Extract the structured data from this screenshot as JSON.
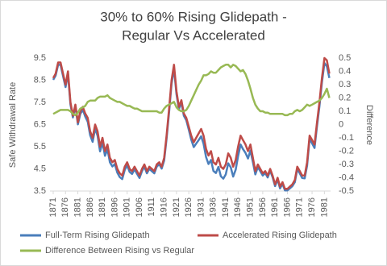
{
  "chart_data": {
    "type": "line",
    "title": [
      "30% to 60% Rising Glidepath -",
      "Regular Vs Accelerated"
    ],
    "y_label": "Safe Withdrawal Rate",
    "y2_label": "Difference",
    "x": [
      1871,
      1872,
      1873,
      1874,
      1875,
      1876,
      1877,
      1878,
      1879,
      1880,
      1881,
      1882,
      1883,
      1884,
      1885,
      1886,
      1887,
      1888,
      1889,
      1890,
      1891,
      1892,
      1893,
      1894,
      1895,
      1896,
      1897,
      1898,
      1899,
      1900,
      1901,
      1902,
      1903,
      1904,
      1905,
      1906,
      1907,
      1908,
      1909,
      1910,
      1911,
      1912,
      1913,
      1914,
      1915,
      1916,
      1917,
      1918,
      1919,
      1920,
      1921,
      1922,
      1923,
      1924,
      1925,
      1926,
      1927,
      1928,
      1929,
      1930,
      1931,
      1932,
      1933,
      1934,
      1935,
      1936,
      1937,
      1938,
      1939,
      1940,
      1941,
      1942,
      1943,
      1944,
      1945,
      1946,
      1947,
      1948,
      1949,
      1950,
      1951,
      1952,
      1953,
      1954,
      1955,
      1956,
      1957,
      1958,
      1959,
      1960,
      1961,
      1962,
      1963,
      1964,
      1965,
      1966,
      1967,
      1968,
      1969,
      1970,
      1971,
      1972,
      1973,
      1974,
      1975,
      1976,
      1977,
      1978,
      1979,
      1980,
      1981,
      1982,
      1983
    ],
    "xlim": [
      1869.7,
      1983.5
    ],
    "xticks": [
      1871,
      1876,
      1881,
      1886,
      1891,
      1896,
      1901,
      1906,
      1911,
      1916,
      1921,
      1926,
      1931,
      1936,
      1941,
      1946,
      1951,
      1956,
      1961,
      1966,
      1971,
      1976,
      1981
    ],
    "ylim": [
      3.5,
      9.5
    ],
    "yticks": [
      3.5,
      4.5,
      5.5,
      6.5,
      7.5,
      8.5,
      9.5
    ],
    "y2lim": [
      -0.5,
      0.5
    ],
    "y2ticks": [
      0.5,
      0.4,
      0.3,
      0.2,
      0.1,
      0,
      -0.1,
      -0.2,
      -0.3,
      -0.4,
      -0.5
    ],
    "grid": false,
    "legend": "bottom",
    "series": [
      {
        "name": "Full-Term Rising Glidepath",
        "color": "#4a7ebb",
        "values": [
          8.52,
          8.71,
          9.2,
          9.19,
          8.69,
          8.19,
          8.79,
          7.4,
          6.82,
          7.33,
          6.51,
          6.98,
          7.17,
          6.86,
          6.63,
          6.02,
          5.72,
          6.32,
          6.0,
          5.29,
          5.69,
          5.09,
          5.38,
          4.8,
          4.61,
          4.72,
          4.33,
          4.13,
          4.04,
          4.45,
          4.66,
          4.36,
          4.27,
          4.48,
          4.28,
          4.09,
          4.4,
          4.6,
          4.3,
          4.5,
          4.4,
          4.3,
          4.6,
          4.71,
          4.51,
          4.88,
          5.86,
          7.05,
          8.34,
          9.03,
          7.87,
          7.19,
          7.5,
          6.9,
          6.69,
          6.26,
          5.82,
          5.48,
          5.64,
          5.8,
          5.97,
          5.63,
          5.03,
          4.72,
          4.9,
          4.41,
          4.31,
          4.59,
          4.17,
          4.06,
          4.25,
          4.75,
          4.57,
          4.15,
          4.46,
          5.08,
          5.6,
          5.39,
          5.22,
          4.97,
          5.33,
          4.8,
          4.25,
          4.58,
          4.4,
          4.2,
          4.31,
          4.11,
          4.42,
          4.12,
          3.72,
          4.02,
          3.62,
          3.82,
          3.53,
          3.53,
          3.62,
          3.72,
          3.9,
          4.49,
          4.3,
          4.09,
          4.07,
          4.65,
          5.86,
          5.65,
          5.44,
          6.43,
          7.32,
          8.4,
          9.27,
          9.13,
          8.6
        ]
      },
      {
        "name": "Accelerated Rising Glidepath",
        "color": "#be4b48",
        "values": [
          8.6,
          8.8,
          9.3,
          9.3,
          8.8,
          8.3,
          8.9,
          7.5,
          6.9,
          7.4,
          6.6,
          7.1,
          7.3,
          7.0,
          6.8,
          6.2,
          5.9,
          6.5,
          6.2,
          5.5,
          5.9,
          5.3,
          5.6,
          5.0,
          4.8,
          4.9,
          4.5,
          4.3,
          4.2,
          4.6,
          4.8,
          4.5,
          4.4,
          4.6,
          4.4,
          4.2,
          4.5,
          4.7,
          4.4,
          4.6,
          4.5,
          4.4,
          4.7,
          4.8,
          4.6,
          5.0,
          6.0,
          7.2,
          8.5,
          9.2,
          8.0,
          7.3,
          7.6,
          7.0,
          6.8,
          6.4,
          6.0,
          5.7,
          5.9,
          6.1,
          6.3,
          6.0,
          5.4,
          5.1,
          5.3,
          4.8,
          4.7,
          5.0,
          4.6,
          4.5,
          4.7,
          5.2,
          5.0,
          4.6,
          4.9,
          5.5,
          6.0,
          5.8,
          5.6,
          5.3,
          5.6,
          5.0,
          4.4,
          4.7,
          4.5,
          4.3,
          4.4,
          4.2,
          4.5,
          4.2,
          3.8,
          4.1,
          3.7,
          3.9,
          3.6,
          3.6,
          3.7,
          3.8,
          4.0,
          4.6,
          4.4,
          4.2,
          4.2,
          4.8,
          6.0,
          5.8,
          5.6,
          6.6,
          7.5,
          8.6,
          9.5,
          9.4,
          8.8
        ]
      },
      {
        "name": "Difference Between Rising vs Regular",
        "color": "#98b954",
        "axis": "y2",
        "values": [
          0.08,
          0.09,
          0.1,
          0.11,
          0.11,
          0.11,
          0.11,
          0.1,
          0.08,
          0.07,
          0.09,
          0.12,
          0.13,
          0.14,
          0.17,
          0.18,
          0.18,
          0.18,
          0.2,
          0.21,
          0.21,
          0.21,
          0.22,
          0.2,
          0.19,
          0.18,
          0.17,
          0.17,
          0.16,
          0.15,
          0.14,
          0.14,
          0.13,
          0.12,
          0.12,
          0.11,
          0.1,
          0.1,
          0.1,
          0.1,
          0.1,
          0.1,
          0.1,
          0.09,
          0.09,
          0.12,
          0.14,
          0.15,
          0.16,
          0.17,
          0.13,
          0.11,
          0.1,
          0.1,
          0.11,
          0.14,
          0.18,
          0.22,
          0.26,
          0.3,
          0.33,
          0.37,
          0.37,
          0.38,
          0.4,
          0.39,
          0.39,
          0.41,
          0.43,
          0.44,
          0.45,
          0.45,
          0.43,
          0.45,
          0.44,
          0.42,
          0.4,
          0.41,
          0.38,
          0.33,
          0.27,
          0.2,
          0.15,
          0.12,
          0.1,
          0.1,
          0.09,
          0.09,
          0.08,
          0.08,
          0.08,
          0.08,
          0.08,
          0.08,
          0.07,
          0.07,
          0.08,
          0.08,
          0.1,
          0.11,
          0.1,
          0.11,
          0.13,
          0.15,
          0.14,
          0.15,
          0.16,
          0.17,
          0.18,
          0.2,
          0.23,
          0.27,
          0.2
        ]
      }
    ]
  }
}
